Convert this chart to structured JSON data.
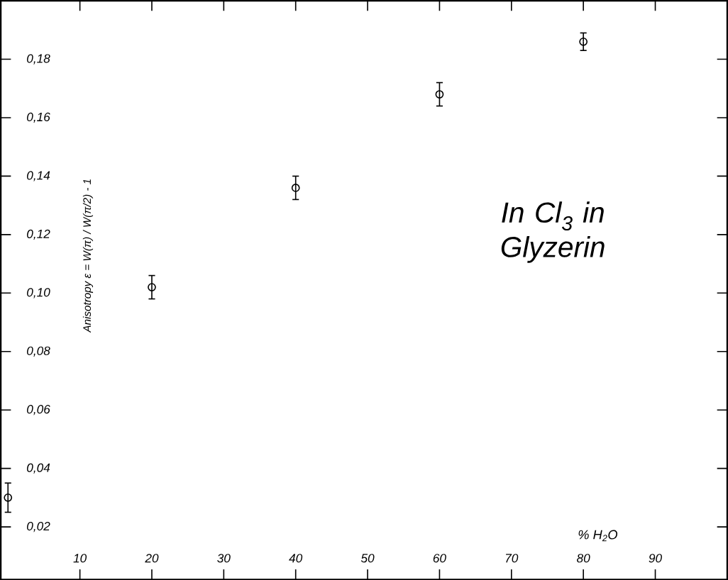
{
  "chart_data": {
    "type": "scatter",
    "xlabel": "% H$_{2}$O",
    "ylabel": "Anisotropy ε = W(π) / W(π/2) - 1",
    "annotations": [
      "In Cl$_{3}$ in Glyzerin"
    ],
    "x": [
      0,
      20,
      40,
      60,
      80
    ],
    "values": [
      0.03,
      0.102,
      0.136,
      0.168,
      0.186
    ],
    "errors": [
      0.005,
      0.004,
      0.004,
      0.004,
      0.003
    ],
    "color": "#000000",
    "marker": "circle",
    "xlim": [
      -1,
      100
    ],
    "ylim": [
      0.002,
      0.2
    ],
    "xticks": [
      10,
      20,
      30,
      40,
      50,
      60,
      70,
      80,
      90
    ],
    "yticks": [
      {
        "value": 0.02,
        "label": "0,02"
      },
      {
        "value": 0.04,
        "label": "0,04"
      },
      {
        "value": 0.06,
        "label": "0,06"
      },
      {
        "value": 0.08,
        "label": "0,08"
      },
      {
        "value": 0.1,
        "label": "0,10"
      },
      {
        "value": 0.12,
        "label": "0,12"
      },
      {
        "value": 0.14,
        "label": "0,14"
      },
      {
        "value": 0.16,
        "label": "0,16"
      },
      {
        "value": 0.18,
        "label": "0,18"
      }
    ],
    "grid": false
  }
}
